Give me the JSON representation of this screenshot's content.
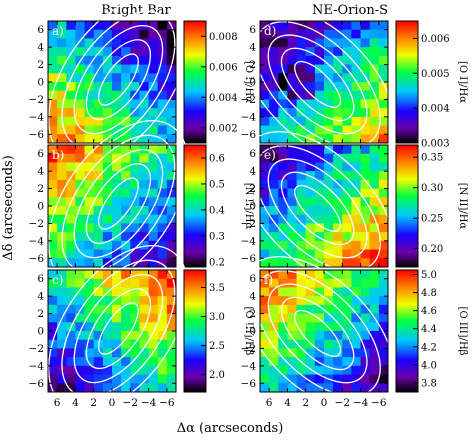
{
  "figure": {
    "col_titles": [
      "Bright Bar",
      "NE-Orion-S"
    ],
    "xlabel": "Δα (arcseconds)",
    "ylabel": "Δδ (arcseconds)"
  },
  "chart_data": [
    {
      "type": "heatmap",
      "panel": "a)",
      "column": "Bright Bar",
      "xlim": [
        7,
        -7
      ],
      "ylim": [
        -7,
        7
      ],
      "x_ticks": [
        "6",
        "4",
        "2",
        "0",
        "−2",
        "−4",
        "−6"
      ],
      "y_ticks": [
        "6",
        "4",
        "2",
        "0",
        "−2",
        "−4",
        "−6"
      ],
      "colorbar": {
        "label": "[O I]/Hα",
        "ticks": [
          "0.008",
          "0.006",
          "0.004",
          "0.002"
        ],
        "range": [
          0.001,
          0.009
        ]
      },
      "contours": "white",
      "map_trend": "high values along the lower-left, low values toward the upper-right"
    },
    {
      "type": "heatmap",
      "panel": "b)",
      "column": "Bright Bar",
      "xlim": [
        7,
        -7
      ],
      "ylim": [
        -7,
        7
      ],
      "x_ticks": [
        "6",
        "4",
        "2",
        "0",
        "−2",
        "−4",
        "−6"
      ],
      "y_ticks": [
        "6",
        "4",
        "2",
        "0",
        "−2",
        "−4",
        "−6"
      ],
      "colorbar": {
        "label": "[N II]/Hα",
        "ticks": [
          "0.6",
          "0.5",
          "0.4",
          "0.3",
          "0.2"
        ],
        "range": [
          0.18,
          0.65
        ]
      },
      "contours": "white",
      "map_trend": "high values toward the upper-left, low values toward the lower-right"
    },
    {
      "type": "heatmap",
      "panel": "c)",
      "column": "Bright Bar",
      "xlim": [
        7,
        -7
      ],
      "ylim": [
        -7,
        7
      ],
      "x_ticks": [
        "6",
        "4",
        "2",
        "0",
        "−2",
        "−4",
        "−6"
      ],
      "y_ticks": [
        "6",
        "4",
        "2",
        "0",
        "−2",
        "−4",
        "−6"
      ],
      "colorbar": {
        "label": "[O III]/Hβ",
        "ticks": [
          "3.5",
          "3.0",
          "2.5",
          "2.0"
        ],
        "range": [
          1.7,
          3.8
        ]
      },
      "contours": "white",
      "map_trend": "high values toward the upper-right, low values toward the lower-left"
    },
    {
      "type": "heatmap",
      "panel": "d)",
      "column": "NE-Orion-S",
      "xlim": [
        7,
        -7
      ],
      "ylim": [
        -7,
        7
      ],
      "x_ticks": [
        "6",
        "4",
        "2",
        "0",
        "−2",
        "−4",
        "−6"
      ],
      "y_ticks": [
        "6",
        "4",
        "2",
        "0",
        "−2",
        "−4",
        "−6"
      ],
      "colorbar": {
        "label": "[O I]/Hα",
        "ticks": [
          "0.006",
          "0.005",
          "0.004",
          "0.003"
        ],
        "range": [
          0.003,
          0.0065
        ]
      },
      "contours": "white",
      "map_trend": "high values toward the lower-right, low values in the left and centre"
    },
    {
      "type": "heatmap",
      "panel": "e)",
      "column": "NE-Orion-S",
      "xlim": [
        7,
        -7
      ],
      "ylim": [
        -7,
        7
      ],
      "x_ticks": [
        "6",
        "4",
        "2",
        "0",
        "−2",
        "−4",
        "−6"
      ],
      "y_ticks": [
        "6",
        "4",
        "2",
        "0",
        "−2",
        "−4",
        "−6"
      ],
      "colorbar": {
        "label": "[N II]/Hα",
        "ticks": [
          "0.35",
          "0.30",
          "0.25",
          "0.20"
        ],
        "range": [
          0.17,
          0.37
        ]
      },
      "contours": "white",
      "map_trend": "high values toward the lower-right, low values toward the upper-left"
    },
    {
      "type": "heatmap",
      "panel": "f)",
      "column": "NE-Orion-S",
      "xlim": [
        7,
        -7
      ],
      "ylim": [
        -7,
        7
      ],
      "x_ticks": [
        "6",
        "4",
        "2",
        "0",
        "−2",
        "−4",
        "−6"
      ],
      "y_ticks": [
        "6",
        "4",
        "2",
        "0",
        "−2",
        "−4",
        "−6"
      ],
      "colorbar": {
        "label": "[O III]/Hβ",
        "ticks": [
          "5.0",
          "4.8",
          "4.6",
          "4.4",
          "4.2",
          "4.0",
          "3.8"
        ],
        "range": [
          3.7,
          5.05
        ]
      },
      "contours": "white",
      "map_trend": "high values toward the upper-left, low values toward the lower-right"
    }
  ]
}
